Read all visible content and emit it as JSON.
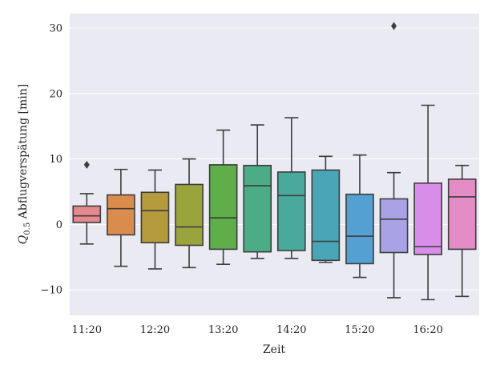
{
  "chart_data": {
    "type": "box",
    "xlabel": "Zeit",
    "ylabel_main": "Q",
    "ylabel_sub": "0.5",
    "ylabel_rest": " Abflugverspätung [min]",
    "ylim": [
      -13.9,
      32.2
    ],
    "yticks": [
      -10,
      0,
      10,
      20,
      30
    ],
    "ytick_labels": [
      "−10",
      "0",
      "10",
      "20",
      "30"
    ],
    "xtick_labels": [
      "11:20",
      "12:20",
      "13:20",
      "14:20",
      "15:20",
      "16:20"
    ],
    "xtick_box_index": [
      0,
      2,
      4,
      6,
      8,
      10
    ],
    "grid": true,
    "background": "#eaeaf2",
    "boxes": [
      {
        "q1": 0.3,
        "median": 1.3,
        "q3": 2.8,
        "wlo": -3.0,
        "whi": 4.7,
        "outliers": [
          9.1
        ],
        "color": "#e4898e"
      },
      {
        "q1": -1.6,
        "median": 2.4,
        "q3": 4.5,
        "wlo": -6.4,
        "whi": 8.4,
        "outliers": [],
        "color": "#d98c4c"
      },
      {
        "q1": -2.8,
        "median": 2.1,
        "q3": 4.9,
        "wlo": -6.8,
        "whi": 8.3,
        "outliers": [],
        "color": "#b59a3e"
      },
      {
        "q1": -3.2,
        "median": -0.4,
        "q3": 6.1,
        "wlo": -6.6,
        "whi": 10.0,
        "outliers": [],
        "color": "#9aa43c"
      },
      {
        "q1": -3.8,
        "median": 1.0,
        "q3": 9.1,
        "wlo": -6.1,
        "whi": 14.4,
        "outliers": [],
        "color": "#5fae49"
      },
      {
        "q1": -4.2,
        "median": 5.9,
        "q3": 9.0,
        "wlo": -5.2,
        "whi": 15.2,
        "outliers": [],
        "color": "#4cac86"
      },
      {
        "q1": -4.0,
        "median": 4.4,
        "q3": 8.0,
        "wlo": -5.2,
        "whi": 16.3,
        "outliers": [],
        "color": "#4aa99d"
      },
      {
        "q1": -5.5,
        "median": -2.6,
        "q3": 8.3,
        "wlo": -5.8,
        "whi": 10.4,
        "outliers": [],
        "color": "#4aa6b6"
      },
      {
        "q1": -6.0,
        "median": -1.8,
        "q3": 4.6,
        "wlo": -8.1,
        "whi": 10.6,
        "outliers": [],
        "color": "#55a0d2"
      },
      {
        "q1": -4.3,
        "median": 0.8,
        "q3": 3.9,
        "wlo": -11.2,
        "whi": 7.9,
        "outliers": [
          30.3
        ],
        "color": "#a9a3e6"
      },
      {
        "q1": -4.6,
        "median": -3.4,
        "q3": 6.3,
        "wlo": -11.5,
        "whi": 18.2,
        "outliers": [],
        "color": "#d88de8"
      },
      {
        "q1": -3.8,
        "median": 4.2,
        "q3": 6.9,
        "wlo": -11.0,
        "whi": 9.0,
        "outliers": [],
        "color": "#e38cc5"
      }
    ]
  }
}
